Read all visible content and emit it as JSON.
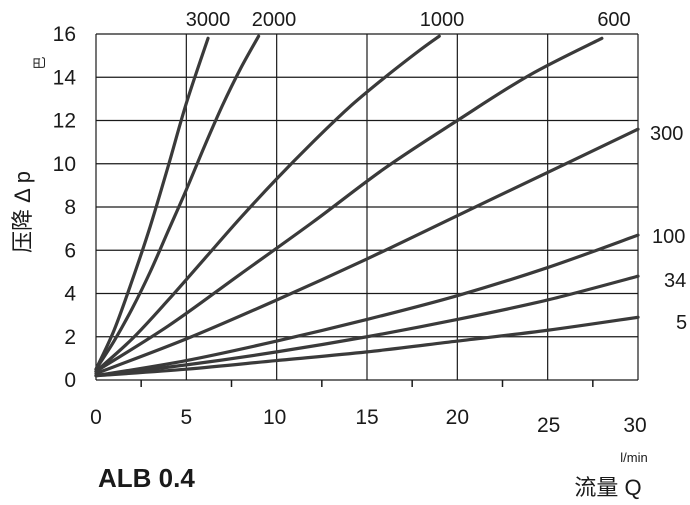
{
  "chart_data": {
    "type": "line",
    "title": "ALB 0.4",
    "xlabel": "流量 Q",
    "xunit": "l/min",
    "ylabel": "压降 Δ p",
    "yunit": "巴",
    "xlim": [
      0,
      30
    ],
    "ylim": [
      0,
      16
    ],
    "xticks": [
      0,
      5,
      10,
      15,
      20,
      25,
      30
    ],
    "yticks": [
      0,
      2,
      4,
      6,
      8,
      10,
      12,
      14,
      16
    ],
    "grid": true,
    "line_color": "#3a3a3a",
    "series": [
      {
        "name": "3000",
        "x": [
          0,
          1,
          2,
          3,
          4,
          5,
          6.2
        ],
        "y": [
          0.5,
          2.3,
          4.6,
          7.1,
          9.9,
          12.8,
          15.8
        ]
      },
      {
        "name": "2000",
        "x": [
          0,
          1,
          2,
          3,
          4,
          5,
          6,
          7,
          8,
          9
        ],
        "y": [
          0.5,
          1.8,
          3.3,
          5.0,
          6.9,
          8.8,
          10.8,
          12.7,
          14.4,
          15.9
        ]
      },
      {
        "name": "1000",
        "x": [
          0,
          2,
          4,
          6,
          8,
          10,
          12,
          14,
          16,
          18,
          19
        ],
        "y": [
          0.4,
          1.9,
          3.7,
          5.6,
          7.5,
          9.3,
          11.0,
          12.6,
          14.0,
          15.3,
          15.9
        ]
      },
      {
        "name": "600",
        "x": [
          0,
          4,
          8,
          12,
          16,
          20,
          24,
          28
        ],
        "y": [
          0.4,
          2.5,
          4.9,
          7.3,
          9.8,
          12.0,
          14.1,
          15.8
        ]
      },
      {
        "name": "300",
        "x": [
          0,
          5,
          10,
          15,
          20,
          25,
          30
        ],
        "y": [
          0.3,
          1.9,
          3.7,
          5.6,
          7.6,
          9.6,
          11.6
        ]
      },
      {
        "name": "100",
        "x": [
          0,
          5,
          10,
          15,
          20,
          25,
          30
        ],
        "y": [
          0.2,
          0.9,
          1.8,
          2.8,
          3.9,
          5.2,
          6.7
        ]
      },
      {
        "name": "34",
        "x": [
          0,
          5,
          10,
          15,
          20,
          25,
          30
        ],
        "y": [
          0.2,
          0.7,
          1.3,
          2.0,
          2.8,
          3.7,
          4.8
        ]
      },
      {
        "name": "5",
        "x": [
          0,
          5,
          10,
          15,
          20,
          25,
          30
        ],
        "y": [
          0.2,
          0.5,
          0.9,
          1.3,
          1.8,
          2.3,
          2.9
        ]
      }
    ]
  }
}
